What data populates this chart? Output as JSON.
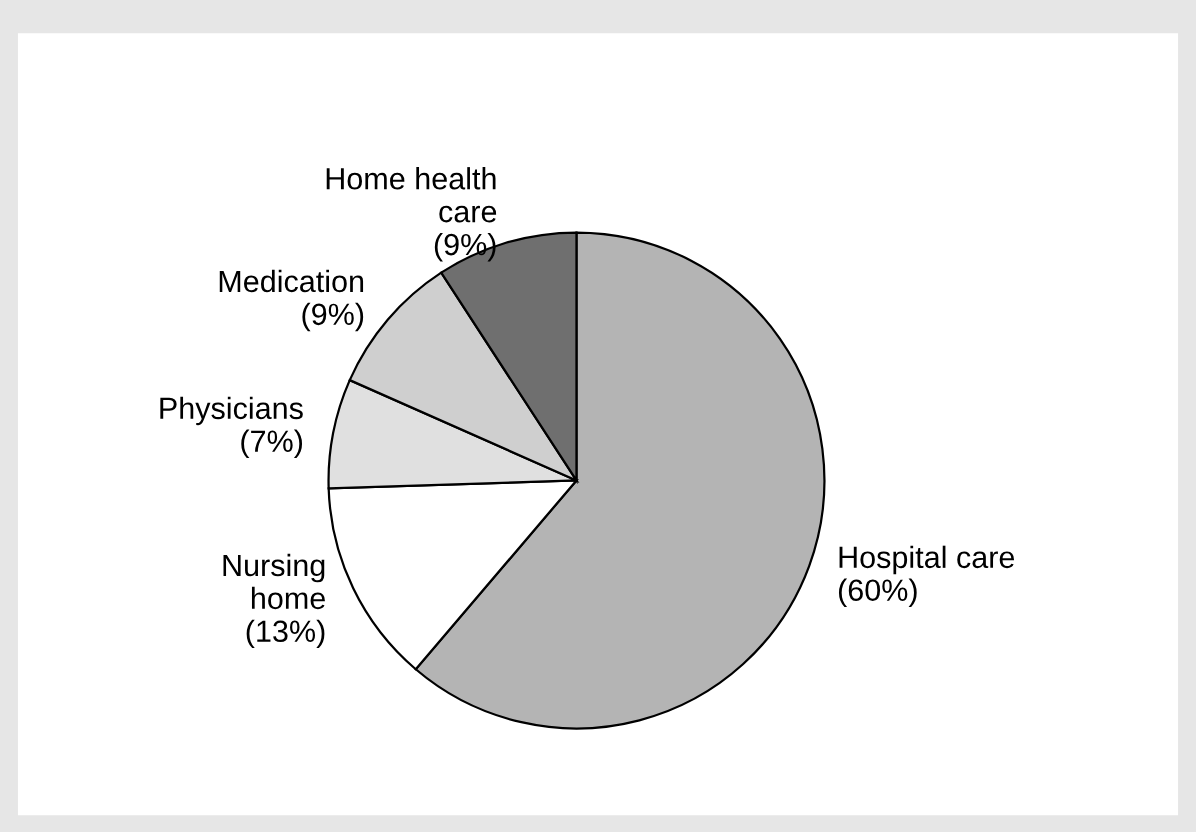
{
  "chart_data": {
    "type": "pie",
    "categories": [
      "Hospital care",
      "Nursing\nhome",
      "Physicians",
      "Medication",
      "Home health\ncare"
    ],
    "values": [
      60,
      13,
      7,
      9,
      9
    ],
    "value_labels": [
      "(60%)",
      "(13%)",
      "(7%)",
      "(9%)",
      "(9%)"
    ],
    "colors": [
      "#b4b4b4",
      "#ffffff",
      "#e0e0e0",
      "#cfcfcf",
      "#6f6f6f"
    ],
    "legend": false
  }
}
